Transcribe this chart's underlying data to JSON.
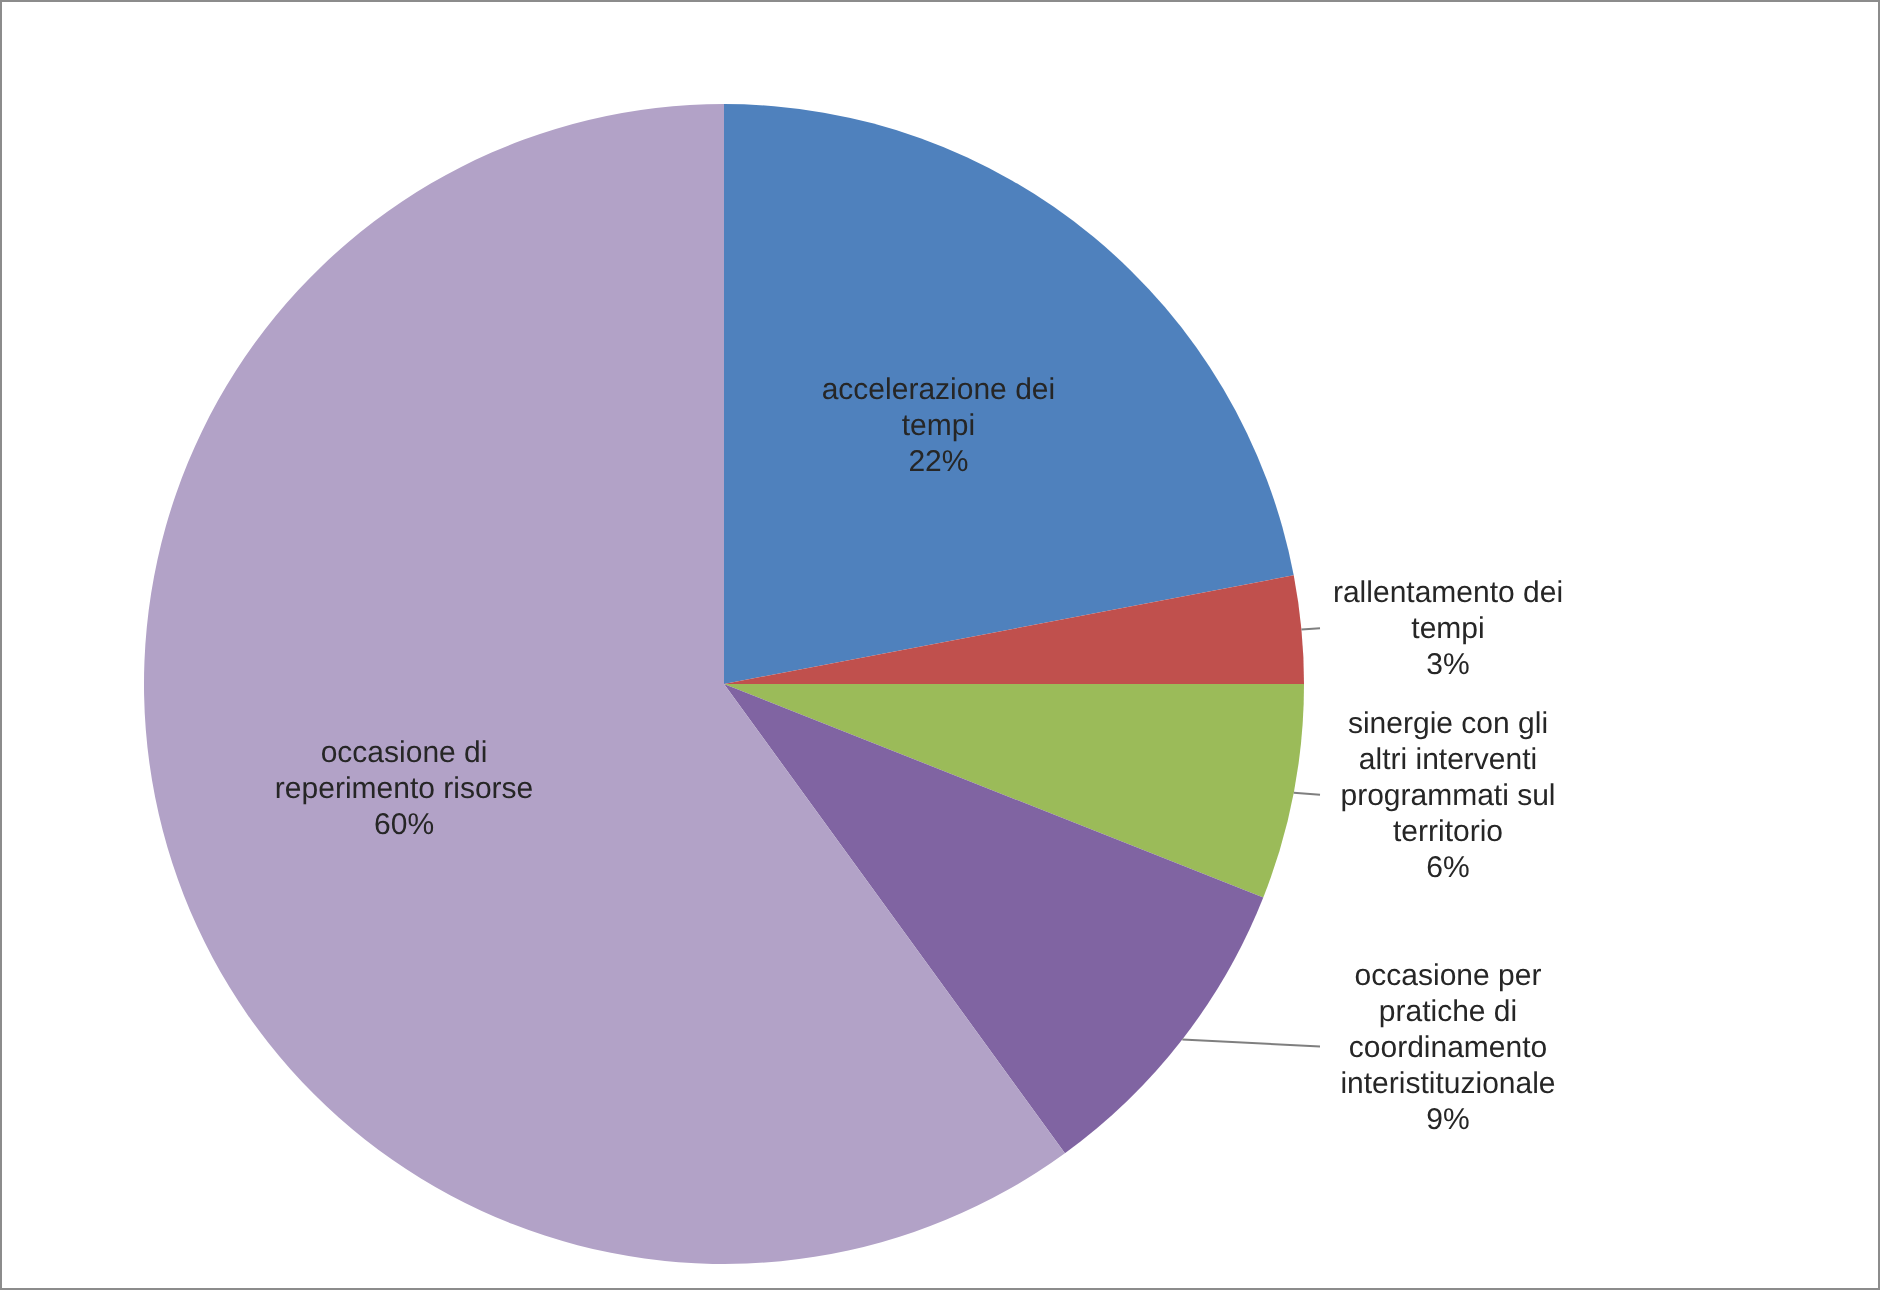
{
  "chart_data": {
    "type": "pie",
    "categories": [
      "accelerazione dei tempi",
      "rallentamento dei tempi",
      "sinergie con gli altri interventi programmati sul territorio",
      "occasione per pratiche di coordinamento interistituzionale",
      "occasione di reperimento risorse"
    ],
    "values": [
      22,
      3,
      6,
      9,
      60
    ],
    "colors": [
      "#4f81bd",
      "#c0504d",
      "#9bbb59",
      "#8064a2",
      "#b2a2c7"
    ],
    "value_labels": [
      "22%",
      "3%",
      "6%",
      "9%",
      "60%"
    ]
  }
}
